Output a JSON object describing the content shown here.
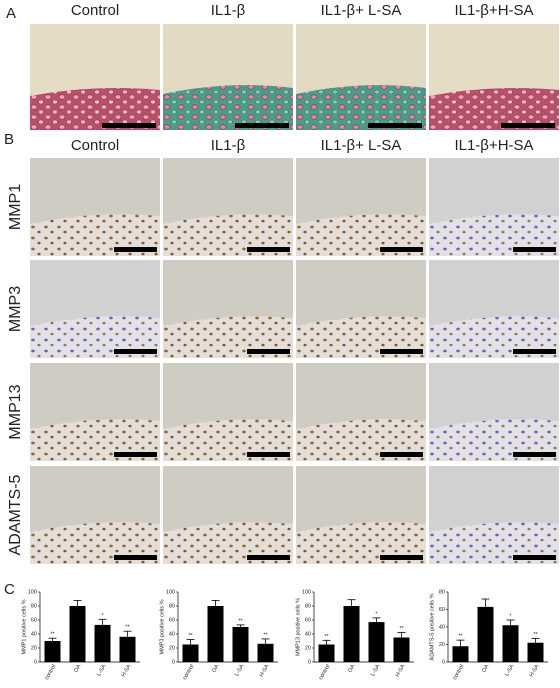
{
  "panels": {
    "a": {
      "label": "A",
      "columns": [
        "Control",
        "IL1-β",
        "IL1-β+ L-SA",
        "IL1-β+H-SA"
      ]
    },
    "b": {
      "label": "B",
      "columns": [
        "Control",
        "IL1-β",
        "IL1-β+ L-SA",
        "IL1-β+H-SA"
      ],
      "rows": [
        "MMP1",
        "MMP3",
        "MMP13",
        "ADAMTS-5"
      ]
    },
    "c": {
      "label": "C"
    }
  },
  "chart_data": [
    {
      "type": "bar",
      "ylabel": "MMP1 positive cells %",
      "categories": [
        "control",
        "OA",
        "L-SA",
        "H-SA"
      ],
      "values": [
        30,
        80,
        53,
        36
      ],
      "errors": [
        4,
        8,
        8,
        8
      ],
      "significance": [
        "**",
        null,
        "*",
        "**"
      ],
      "color": "#000000",
      "ylim": [
        0,
        100
      ],
      "yticks": [
        0,
        20,
        40,
        60,
        80,
        100
      ]
    },
    {
      "type": "bar",
      "ylabel": "MMP3 positive cells %",
      "categories": [
        "control",
        "OA",
        "L-SA",
        "H-SA"
      ],
      "values": [
        25,
        80,
        50,
        26
      ],
      "errors": [
        7,
        8,
        3,
        7
      ],
      "significance": [
        "**",
        null,
        "**",
        "**"
      ],
      "color": "#000000",
      "ylim": [
        0,
        100
      ],
      "yticks": [
        0,
        20,
        40,
        60,
        80,
        100
      ]
    },
    {
      "type": "bar",
      "ylabel": "MMP13 positive cells %",
      "categories": [
        "control",
        "OA",
        "L-SA",
        "H-SA"
      ],
      "values": [
        25,
        80,
        57,
        35
      ],
      "errors": [
        6,
        9,
        6,
        7
      ],
      "significance": [
        "**",
        null,
        "*",
        "**"
      ],
      "color": "#000000",
      "ylim": [
        0,
        100
      ],
      "yticks": [
        0,
        20,
        40,
        60,
        80,
        100
      ]
    },
    {
      "type": "bar",
      "ylabel": "ADAMTS-5 positive cells %",
      "categories": [
        "control",
        "OA",
        "L-SA",
        "H-SA"
      ],
      "values": [
        18,
        63,
        42,
        22
      ],
      "errors": [
        7,
        9,
        6,
        5
      ],
      "significance": [
        "**",
        null,
        "*",
        "**"
      ],
      "color": "#000000",
      "ylim": [
        0,
        80
      ],
      "yticks": [
        0,
        20,
        40,
        60,
        80
      ]
    }
  ]
}
